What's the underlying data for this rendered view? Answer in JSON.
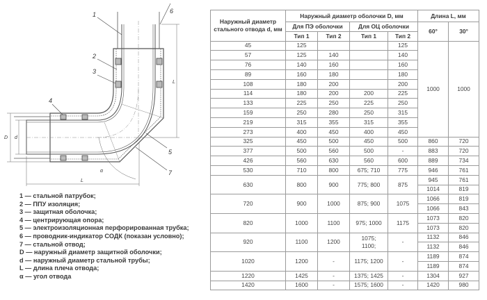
{
  "drawing": {
    "labels": {
      "n1": "1",
      "n2": "2",
      "n3": "3",
      "n4": "4",
      "n5": "5",
      "n6": "6",
      "n7": "7",
      "D": "D",
      "d": "d",
      "L_vertical": "L",
      "L_horizontal": "L",
      "alpha": "α"
    }
  },
  "legend": [
    "1 — стальной патрубок;",
    "2 — ППУ изоляция;",
    "3 — защитная оболочка;",
    "4 — центрирующая опора;",
    "5 — электроизоляционная перфорированная трубка;",
    "6 — проводник-индикатор СОДК (показан условно);",
    "7 — стальной отвод;",
    "D — наружный диаметр защитной оболочки;",
    "d — наружный диаметр стальной трубы;",
    "L — длина плеча отвода;",
    "α — угол отвода"
  ],
  "table": {
    "headers": {
      "steel_d": "Наружный диаметр стального отвода d, мм",
      "casing_D": "Наружный диаметр оболочки D, мм",
      "pe": "Для ПЭ оболочки",
      "oc": "Для ОЦ оболочки",
      "type1": "Тип 1",
      "type2": "Тип 2",
      "length": "Длина L, мм",
      "a60": "60°",
      "a30": "30°"
    },
    "merged_length": {
      "l60": "1000",
      "l30": "1000"
    },
    "rows": [
      {
        "d": "45",
        "pe1": "125",
        "pe2": "",
        "oc1": "",
        "oc2": "125"
      },
      {
        "d": "57",
        "pe1": "125",
        "pe2": "140",
        "oc1": "",
        "oc2": "140"
      },
      {
        "d": "76",
        "pe1": "140",
        "pe2": "160",
        "oc1": "",
        "oc2": "160"
      },
      {
        "d": "89",
        "pe1": "160",
        "pe2": "180",
        "oc1": "",
        "oc2": "180"
      },
      {
        "d": "108",
        "pe1": "180",
        "pe2": "200",
        "oc1": "",
        "oc2": "200"
      },
      {
        "d": "114",
        "pe1": "180",
        "pe2": "200",
        "oc1": "200",
        "oc2": "225"
      },
      {
        "d": "133",
        "pe1": "225",
        "pe2": "250",
        "oc1": "225",
        "oc2": "250"
      },
      {
        "d": "159",
        "pe1": "250",
        "pe2": "280",
        "oc1": "250",
        "oc2": "315"
      },
      {
        "d": "219",
        "pe1": "315",
        "pe2": "355",
        "oc1": "315",
        "oc2": "355"
      },
      {
        "d": "273",
        "pe1": "400",
        "pe2": "450",
        "oc1": "400",
        "oc2": "450"
      },
      {
        "d": "325",
        "pe1": "450",
        "pe2": "500",
        "oc1": "450",
        "oc2": "500",
        "L": [
          [
            "860",
            "720"
          ]
        ]
      },
      {
        "d": "377",
        "pe1": "500",
        "pe2": "560",
        "oc1": "500",
        "oc2": "-",
        "L": [
          [
            "883",
            "720"
          ]
        ]
      },
      {
        "d": "426",
        "pe1": "560",
        "pe2": "630",
        "oc1": "560",
        "oc2": "600",
        "L": [
          [
            "889",
            "734"
          ]
        ]
      },
      {
        "d": "530",
        "pe1": "710",
        "pe2": "800",
        "oc1": "675; 710",
        "oc2": "775",
        "L": [
          [
            "946",
            "761"
          ]
        ]
      },
      {
        "d": "630",
        "pe1": "800",
        "pe2": "900",
        "oc1": "775; 800",
        "oc2": "875",
        "L": [
          [
            "945",
            "761"
          ],
          [
            "1014",
            "819"
          ]
        ]
      },
      {
        "d": "720",
        "pe1": "900",
        "pe2": "1000",
        "oc1": "875; 900",
        "oc2": "1075",
        "L": [
          [
            "1066",
            "819"
          ],
          [
            "1066",
            "843"
          ]
        ]
      },
      {
        "d": "820",
        "pe1": "1000",
        "pe2": "1100",
        "oc1": "975; 1000",
        "oc2": "1175",
        "L": [
          [
            "1073",
            "820"
          ],
          [
            "1073",
            "820"
          ]
        ]
      },
      {
        "d": "920",
        "pe1": "1100",
        "pe2": "1200",
        "oc1": "1075;\n1100;",
        "oc2": "-",
        "L": [
          [
            "1132",
            "846"
          ],
          [
            "1132",
            "846"
          ]
        ]
      },
      {
        "d": "1020",
        "pe1": "1200",
        "pe2": "-",
        "oc1": "1175; 1200",
        "oc2": "-",
        "L": [
          [
            "1189",
            "874"
          ],
          [
            "1189",
            "874"
          ]
        ]
      },
      {
        "d": "1220",
        "pe1": "1425",
        "pe2": "-",
        "oc1": "1375; 1425",
        "oc2": "-",
        "L": [
          [
            "1304",
            "927"
          ]
        ]
      },
      {
        "d": "1420",
        "pe1": "1600",
        "pe2": "-",
        "oc1": "1575; 1600",
        "oc2": "-",
        "L": [
          [
            "1420",
            "980"
          ]
        ]
      }
    ]
  }
}
